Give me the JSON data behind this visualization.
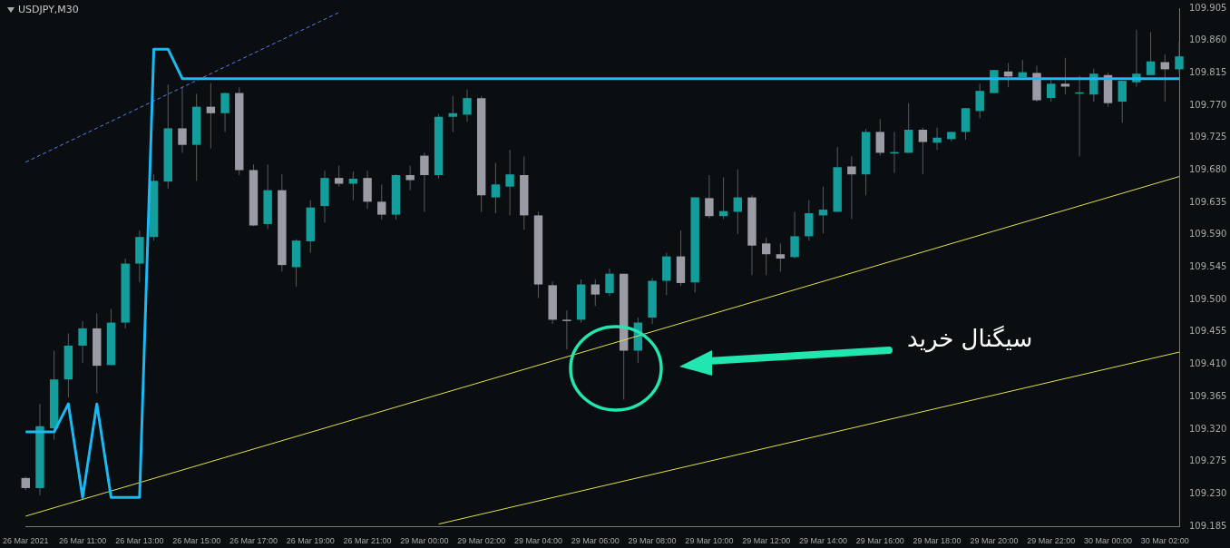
{
  "chart_data": {
    "type": "candlestick",
    "title": "USDJPY,M30",
    "categories": [
      "26 Mar 2021",
      null,
      null,
      null,
      "26 Mar 11:00",
      null,
      null,
      null,
      "26 Mar 13:00",
      null,
      null,
      null,
      "26 Mar 15:00",
      null,
      null,
      null,
      "26 Mar 17:00",
      null,
      null,
      null,
      "26 Mar 19:00",
      null,
      null,
      null,
      "26 Mar 21:00",
      null,
      null,
      null,
      "29 Mar 00:00",
      null,
      null,
      null,
      "29 Mar 02:00",
      null,
      null,
      null,
      "29 Mar 04:00",
      null,
      null,
      null,
      "29 Mar 06:00",
      null,
      null,
      null,
      "29 Mar 08:00",
      null,
      null,
      null,
      "29 Mar 10:00",
      null,
      null,
      null,
      "29 Mar 12:00",
      null,
      null,
      null,
      "29 Mar 14:00",
      null,
      null,
      null,
      "29 Mar 16:00",
      null,
      null,
      null,
      "29 Mar 18:00",
      null,
      null,
      null,
      "29 Mar 20:00",
      null,
      null,
      null,
      "29 Mar 22:00",
      null,
      null,
      null,
      "30 Mar 00:00",
      null,
      null,
      null,
      "30 Mar 02:00",
      null
    ],
    "ohlc": [
      [
        109.252,
        109.254,
        109.235,
        109.238
      ],
      [
        109.238,
        109.355,
        109.228,
        109.324
      ],
      [
        109.321,
        109.429,
        109.305,
        109.389
      ],
      [
        109.389,
        109.453,
        109.364,
        109.436
      ],
      [
        109.436,
        109.47,
        109.412,
        109.46
      ],
      [
        109.46,
        109.481,
        109.37,
        109.408
      ],
      [
        109.409,
        109.487,
        109.409,
        109.468
      ],
      [
        109.468,
        109.557,
        109.46,
        109.55
      ],
      [
        109.55,
        109.596,
        109.524,
        109.587
      ],
      [
        109.587,
        109.674,
        109.582,
        109.665
      ],
      [
        109.664,
        109.799,
        109.654,
        109.738
      ],
      [
        109.738,
        109.796,
        109.704,
        109.715
      ],
      [
        109.715,
        109.786,
        109.665,
        109.768
      ],
      [
        109.768,
        109.801,
        109.71,
        109.759
      ],
      [
        109.759,
        109.788,
        109.733,
        109.787
      ],
      [
        109.787,
        109.795,
        109.673,
        109.68
      ],
      [
        109.68,
        109.688,
        109.602,
        109.603
      ],
      [
        109.605,
        109.688,
        109.598,
        109.652
      ],
      [
        109.652,
        109.674,
        109.539,
        109.548
      ],
      [
        109.545,
        109.584,
        109.518,
        109.582
      ],
      [
        109.581,
        109.638,
        109.565,
        109.628
      ],
      [
        109.63,
        109.679,
        109.607,
        109.669
      ],
      [
        109.669,
        109.686,
        109.657,
        109.661
      ],
      [
        109.661,
        109.678,
        109.638,
        109.668
      ],
      [
        109.669,
        109.679,
        109.626,
        109.636
      ],
      [
        109.636,
        109.66,
        109.611,
        109.618
      ],
      [
        109.618,
        109.674,
        109.611,
        109.673
      ],
      [
        109.673,
        109.686,
        109.652,
        109.666
      ],
      [
        109.7,
        109.704,
        109.622,
        109.673
      ],
      [
        109.673,
        109.758,
        109.668,
        109.754
      ],
      [
        109.754,
        109.783,
        109.733,
        109.759
      ],
      [
        109.757,
        109.792,
        109.747,
        109.78
      ],
      [
        109.78,
        109.783,
        109.622,
        109.645
      ],
      [
        109.642,
        109.69,
        109.62,
        109.66
      ],
      [
        109.657,
        109.708,
        109.617,
        109.674
      ],
      [
        109.673,
        109.699,
        109.597,
        109.617
      ],
      [
        109.617,
        109.622,
        109.502,
        109.521
      ],
      [
        109.52,
        109.525,
        109.466,
        109.472
      ],
      [
        109.472,
        109.485,
        109.431,
        109.472
      ],
      [
        109.472,
        109.528,
        109.468,
        109.521
      ],
      [
        109.521,
        109.528,
        109.491,
        109.507
      ],
      [
        109.509,
        109.543,
        109.505,
        109.536
      ],
      [
        109.536,
        109.536,
        109.361,
        109.429
      ],
      [
        109.429,
        109.475,
        109.412,
        109.468
      ],
      [
        109.475,
        109.53,
        109.466,
        109.526
      ],
      [
        109.526,
        109.565,
        109.506,
        109.56
      ],
      [
        109.56,
        109.596,
        109.519,
        109.523
      ],
      [
        109.524,
        109.642,
        109.51,
        109.642
      ],
      [
        109.641,
        109.673,
        109.613,
        109.616
      ],
      [
        109.616,
        109.67,
        109.612,
        109.623
      ],
      [
        109.622,
        109.681,
        109.591,
        109.642
      ],
      [
        109.642,
        109.645,
        109.534,
        109.575
      ],
      [
        109.578,
        109.586,
        109.534,
        109.563
      ],
      [
        109.563,
        109.578,
        109.539,
        109.557
      ],
      [
        109.559,
        109.622,
        109.557,
        109.588
      ],
      [
        109.588,
        109.638,
        109.582,
        109.62
      ],
      [
        109.617,
        109.657,
        109.592,
        109.625
      ],
      [
        109.622,
        109.712,
        109.622,
        109.684
      ],
      [
        109.685,
        109.699,
        109.612,
        109.674
      ],
      [
        109.674,
        109.737,
        109.645,
        109.733
      ],
      [
        109.733,
        109.751,
        109.7,
        109.704
      ],
      [
        109.703,
        109.733,
        109.676,
        109.705
      ],
      [
        109.704,
        109.773,
        109.704,
        109.736
      ],
      [
        109.736,
        109.739,
        109.674,
        109.719
      ],
      [
        109.718,
        109.739,
        109.708,
        109.725
      ],
      [
        109.723,
        109.733,
        109.72,
        109.733
      ],
      [
        109.733,
        109.766,
        109.722,
        109.766
      ],
      [
        109.762,
        109.8,
        109.752,
        109.79
      ],
      [
        109.787,
        109.819,
        109.787,
        109.819
      ],
      [
        109.817,
        109.829,
        109.795,
        109.81
      ],
      [
        109.809,
        109.833,
        109.809,
        109.816
      ],
      [
        109.815,
        109.825,
        109.775,
        109.777
      ],
      [
        109.78,
        109.805,
        109.775,
        109.8
      ],
      [
        109.8,
        109.836,
        109.785,
        109.796
      ],
      [
        109.787,
        109.811,
        109.699,
        109.788
      ],
      [
        109.785,
        109.821,
        109.775,
        109.814
      ],
      [
        109.812,
        109.815,
        109.768,
        109.773
      ],
      [
        109.775,
        109.804,
        109.746,
        109.804
      ],
      [
        109.802,
        109.875,
        109.796,
        109.814
      ],
      [
        109.812,
        109.872,
        109.812,
        109.831
      ],
      [
        109.83,
        109.841,
        109.775,
        109.82
      ],
      [
        109.82,
        109.859,
        109.814,
        109.838
      ]
    ],
    "colors": [
      "#9b9ba5",
      "#139e9c",
      "#139e9c",
      "#139e9c",
      "#139e9c",
      "#9b9ba5",
      "#139e9c",
      "#139e9c",
      "#139e9c",
      "#139e9c",
      "#139e9c",
      "#9b9ba5",
      "#139e9c",
      "#9b9ba5",
      "#139e9c",
      "#9b9ba5",
      "#9b9ba5",
      "#139e9c",
      "#9b9ba5",
      "#139e9c",
      "#139e9c",
      "#139e9c",
      "#9b9ba5",
      "#139e9c",
      "#9b9ba5",
      "#9b9ba5",
      "#139e9c",
      "#9b9ba5",
      "#9b9ba5",
      "#139e9c",
      "#139e9c",
      "#139e9c",
      "#9b9ba5",
      "#139e9c",
      "#139e9c",
      "#9b9ba5",
      "#9b9ba5",
      "#9b9ba5",
      "#9b9ba5",
      "#139e9c",
      "#9b9ba5",
      "#139e9c",
      "#9b9ba5",
      "#139e9c",
      "#139e9c",
      "#139e9c",
      "#9b9ba5",
      "#139e9c",
      "#9b9ba5",
      "#139e9c",
      "#139e9c",
      "#9b9ba5",
      "#9b9ba5",
      "#9b9ba5",
      "#139e9c",
      "#139e9c",
      "#139e9c",
      "#139e9c",
      "#9b9ba5",
      "#139e9c",
      "#9b9ba5",
      "#139e9c",
      "#139e9c",
      "#9b9ba5",
      "#139e9c",
      "#139e9c",
      "#139e9c",
      "#139e9c",
      "#139e9c",
      "#9b9ba5",
      "#139e9c",
      "#9b9ba5",
      "#139e9c",
      "#9b9ba5",
      "#139e9c",
      "#139e9c",
      "#9b9ba5",
      "#139e9c",
      "#139e9c",
      "#139e9c",
      "#9b9ba5",
      "#139e9c"
    ],
    "series": [
      {
        "type": "line",
        "color": "#1bb8f2",
        "values": [
          109.316,
          109.316,
          109.316,
          109.355,
          109.225,
          109.355,
          109.225,
          109.225,
          109.225,
          109.848,
          109.848,
          109.807,
          109.807,
          109.807,
          109.807,
          109.807,
          109.807,
          109.807,
          109.807,
          109.807,
          109.807,
          109.807,
          109.807,
          109.807,
          109.807,
          109.807,
          109.807,
          109.807,
          109.807,
          109.807,
          109.807,
          109.807,
          109.807,
          109.807,
          109.807,
          109.807,
          109.807,
          109.807,
          109.807,
          109.807,
          109.807,
          109.807,
          109.807,
          109.807,
          109.807,
          109.807,
          109.807,
          109.807,
          109.807,
          109.807,
          109.807,
          109.807,
          109.807,
          109.807,
          109.807,
          109.807,
          109.807,
          109.807,
          109.807,
          109.807,
          109.807,
          109.807,
          109.807,
          109.807,
          109.807,
          109.807,
          109.807,
          109.807,
          109.807,
          109.807,
          109.807,
          109.807,
          109.807,
          109.807,
          109.807,
          109.807,
          109.807,
          109.807,
          109.807,
          109.807,
          109.807,
          109.807
        ]
      },
      {
        "type": "line",
        "color": "#e2e04a",
        "values": [
          109.199,
          null,
          null,
          null,
          null,
          null,
          null,
          null,
          null,
          null,
          null,
          null,
          null,
          null,
          null,
          null,
          null,
          null,
          null,
          null,
          null,
          null,
          null,
          null,
          null,
          null,
          null,
          null,
          null,
          null,
          null,
          null,
          null,
          null,
          null,
          null,
          null,
          null,
          null,
          null,
          null,
          null,
          null,
          null,
          null,
          null,
          null,
          null,
          null,
          null,
          null,
          null,
          null,
          null,
          null,
          null,
          null,
          null,
          null,
          null,
          null,
          null,
          null,
          null,
          null,
          null,
          null,
          null,
          null,
          null,
          null,
          null,
          null,
          null,
          null,
          null,
          null,
          null,
          null,
          null,
          null,
          109.671
        ]
      },
      {
        "type": "line",
        "color": "#e2e04a",
        "values": [
          null,
          null,
          null,
          null,
          null,
          null,
          null,
          null,
          null,
          null,
          null,
          null,
          null,
          null,
          null,
          null,
          null,
          null,
          null,
          null,
          null,
          null,
          null,
          null,
          null,
          null,
          null,
          null,
          null,
          109.188,
          null,
          null,
          null,
          null,
          null,
          null,
          null,
          null,
          null,
          null,
          null,
          null,
          null,
          null,
          null,
          null,
          null,
          null,
          null,
          null,
          null,
          null,
          null,
          null,
          null,
          null,
          null,
          null,
          null,
          null,
          null,
          null,
          null,
          null,
          null,
          null,
          null,
          null,
          null,
          null,
          null,
          null,
          null,
          null,
          null,
          null,
          null,
          null,
          null,
          null,
          null,
          109.427
        ]
      },
      {
        "type": "line",
        "color": "#5a7cf0",
        "line_style": "dashed",
        "values": [
          109.691,
          null,
          null,
          null,
          null,
          null,
          null,
          null,
          null,
          null,
          null,
          null,
          null,
          null,
          null,
          null,
          null,
          null,
          null,
          null,
          null,
          null,
          109.899,
          null,
          null,
          null,
          null,
          null,
          null,
          null,
          null,
          null,
          null,
          null,
          null,
          null,
          null,
          null,
          null,
          null,
          null,
          null,
          null,
          null,
          null,
          null,
          null,
          null,
          null,
          null,
          null,
          null,
          null,
          null,
          null,
          null,
          null,
          null,
          null,
          null,
          null,
          null,
          null,
          null,
          null,
          null,
          null,
          null,
          null,
          null,
          null,
          null,
          null,
          null,
          null,
          null,
          null,
          null,
          null,
          null,
          null,
          null
        ]
      }
    ],
    "ylim": [
      109.185,
      109.905
    ],
    "yticks": [
      109.185,
      {
        "value": 109.23,
        "label": "109.230"
      },
      109.275,
      {
        "value": 109.32,
        "label": "109.320"
      },
      109.365,
      {
        "value": 109.41,
        "label": "109.410"
      },
      109.455,
      {
        "value": 109.5,
        "label": "109.500"
      },
      109.545,
      {
        "value": 109.59,
        "label": "109.590"
      },
      109.635,
      {
        "value": 109.68,
        "label": "109.680"
      },
      109.725,
      {
        "value": 109.77,
        "label": "109.770"
      },
      109.815,
      {
        "value": 109.86,
        "label": "109.860"
      },
      109.905
    ],
    "annotations": [
      "سیگنال خرید"
    ]
  }
}
